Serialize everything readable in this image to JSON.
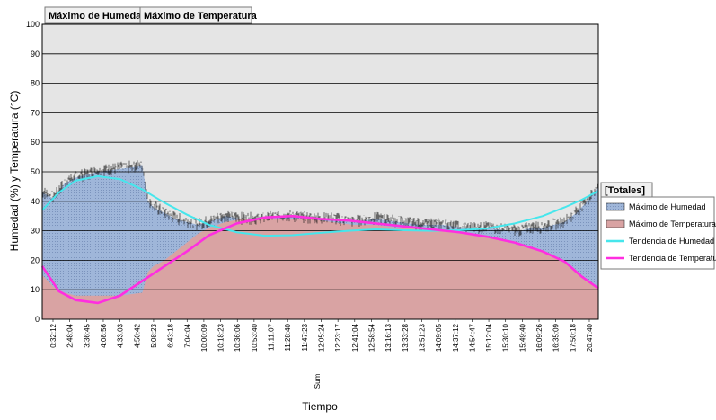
{
  "tabs": [
    {
      "label": "Máximo de Humedad"
    },
    {
      "label": "Máximo de Temperatura"
    }
  ],
  "colors": {
    "plot_bg": "#e5e5e5",
    "humidity_fill": "#9fb6d9",
    "humidity_noise": "#111111",
    "temperature_fill": "#d9a3a3",
    "humidity_trend": "#46e6ec",
    "temperature_trend": "#ff2ee0",
    "grid": "#000000"
  },
  "chart_data": {
    "type": "area",
    "ylabel": "Humedad (%) y Temperatura (°C)",
    "xlabel": "Tiempo",
    "x_axis_extra_label": "Sum",
    "ylim": [
      0,
      100
    ],
    "yticks": [
      0,
      10,
      20,
      30,
      40,
      50,
      60,
      70,
      80,
      90,
      100
    ],
    "grid": "horizontal",
    "legend_position": "right",
    "x_ticks": [
      "0:32:12",
      "2:48:04",
      "3:36:45",
      "4:08:56",
      "4:33:03",
      "4:50:42",
      "5:08:23",
      "6:43:18",
      "7:04:04",
      "10:00:09",
      "10:18:23",
      "10:36:06",
      "10:53:40",
      "11:11:07",
      "11:28:40",
      "11:47:23",
      "12:05:24",
      "12:23:17",
      "12:41:04",
      "12:58:54",
      "13:16:13",
      "13:33:28",
      "13:51:23",
      "14:09:05",
      "14:37:12",
      "14:54:47",
      "15:12:04",
      "15:30:10",
      "15:49:40",
      "16:09:26",
      "16:35:09",
      "17:50:18",
      "20:47:40"
    ],
    "legend": {
      "title": "[Totales]",
      "items": [
        {
          "label": "Máximo de Humedad",
          "swatch": "area",
          "color": "#9fb6d9"
        },
        {
          "label": "Máximo de Temperatura",
          "swatch": "area",
          "color": "#d9a3a3"
        },
        {
          "label": "Tendencia de Humedad",
          "swatch": "line",
          "color": "#46e6ec"
        },
        {
          "label": "Tendencia de Temperatura",
          "swatch": "line",
          "color": "#ff2ee0"
        }
      ]
    },
    "series": [
      {
        "name": "Máximo de Humedad",
        "kind": "area",
        "x": [
          0,
          0.02,
          0.04,
          0.06,
          0.08,
          0.1,
          0.14,
          0.18,
          0.19,
          0.2,
          0.22,
          0.24,
          0.26,
          0.28,
          0.3,
          0.33,
          0.36,
          0.4,
          0.44,
          0.48,
          0.52,
          0.56,
          0.6,
          0.64,
          0.68,
          0.72,
          0.76,
          0.8,
          0.84,
          0.86,
          0.88,
          0.9,
          0.92,
          0.94,
          0.96,
          0.98,
          1.0
        ],
        "y": [
          43,
          41,
          46,
          48,
          49,
          50,
          51,
          52,
          40,
          38,
          36,
          34,
          33,
          32,
          33,
          35,
          34,
          34,
          35,
          34,
          34,
          33,
          34,
          33,
          32,
          32,
          31,
          31,
          30,
          30,
          31,
          31,
          32,
          33,
          36,
          40,
          45
        ]
      },
      {
        "name": "Máximo de Temperatura",
        "kind": "area",
        "x": [
          0,
          0.02,
          0.04,
          0.06,
          0.08,
          0.1,
          0.14,
          0.18,
          0.19,
          0.2,
          0.22,
          0.24,
          0.26,
          0.28,
          0.3,
          0.33,
          0.36,
          0.4,
          0.44,
          0.48,
          0.52,
          0.56,
          0.6,
          0.64,
          0.68,
          0.72,
          0.76,
          0.8,
          0.84,
          0.86,
          0.88,
          0.9,
          0.92,
          0.94,
          0.96,
          0.98,
          1.0
        ],
        "y": [
          15,
          11,
          9,
          8,
          8,
          8,
          8,
          9,
          16,
          18,
          20,
          23,
          26,
          29,
          31,
          33,
          34,
          34,
          34,
          34,
          33,
          32,
          32,
          31,
          31,
          30,
          29,
          28,
          26,
          25,
          24,
          23,
          21,
          19,
          16,
          13,
          11
        ]
      },
      {
        "name": "Tendencia de Humedad",
        "kind": "line",
        "x": [
          0,
          0.03,
          0.06,
          0.1,
          0.14,
          0.18,
          0.22,
          0.26,
          0.3,
          0.35,
          0.4,
          0.45,
          0.5,
          0.55,
          0.6,
          0.65,
          0.7,
          0.75,
          0.8,
          0.85,
          0.9,
          0.94,
          0.97,
          1.0
        ],
        "y": [
          37,
          43,
          47,
          48.5,
          47.5,
          44,
          39.5,
          35.5,
          32,
          29.5,
          28.3,
          28.5,
          29.3,
          30,
          30.5,
          30.2,
          30,
          30.2,
          30.8,
          32.5,
          35,
          38,
          40.5,
          43.5
        ]
      },
      {
        "name": "Tendencia de Temperatura",
        "kind": "line",
        "x": [
          0,
          0.03,
          0.06,
          0.1,
          0.14,
          0.18,
          0.22,
          0.26,
          0.3,
          0.35,
          0.4,
          0.45,
          0.5,
          0.55,
          0.6,
          0.65,
          0.7,
          0.75,
          0.8,
          0.85,
          0.9,
          0.94,
          0.97,
          1.0
        ],
        "y": [
          18,
          9.5,
          6.5,
          5.5,
          8,
          13,
          18,
          23,
          28.5,
          32.5,
          34.5,
          35,
          34,
          33.5,
          32.5,
          31.5,
          30.5,
          29.5,
          28,
          26,
          23,
          19.5,
          14.5,
          10.5
        ]
      }
    ]
  }
}
